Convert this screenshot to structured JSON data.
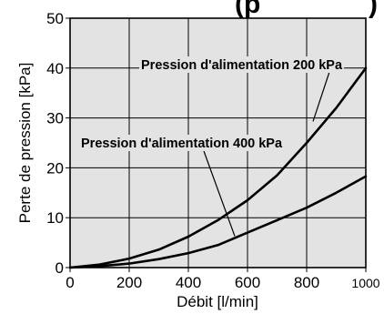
{
  "header": {
    "fragment_left": "(p",
    "fragment_right": ")"
  },
  "chart_data": {
    "type": "line",
    "xlabel": "Débit [l/min]",
    "ylabel": "Perte de pression [kPa]",
    "xlim": [
      0,
      1000
    ],
    "ylim": [
      0,
      50
    ],
    "x_ticks": [
      "0",
      "200",
      "400",
      "600",
      "800",
      "1000"
    ],
    "y_ticks": [
      "0",
      "10",
      "20",
      "30",
      "40",
      "50"
    ],
    "grid": true,
    "series": [
      {
        "name": "Pression d'alimentation 200 kPa",
        "x": [
          0,
          100,
          200,
          300,
          400,
          500,
          600,
          700,
          800,
          900,
          1000
        ],
        "y": [
          0,
          0.6,
          1.8,
          3.6,
          6.2,
          9.5,
          13.5,
          18.5,
          25,
          32,
          40
        ]
      },
      {
        "name": "Pression d'alimentation 400 kPa",
        "x": [
          0,
          100,
          200,
          300,
          400,
          500,
          600,
          700,
          800,
          900,
          1000
        ],
        "y": [
          0,
          0.3,
          0.8,
          1.7,
          2.9,
          4.5,
          7,
          9.5,
          12,
          15,
          18.3
        ]
      }
    ]
  }
}
